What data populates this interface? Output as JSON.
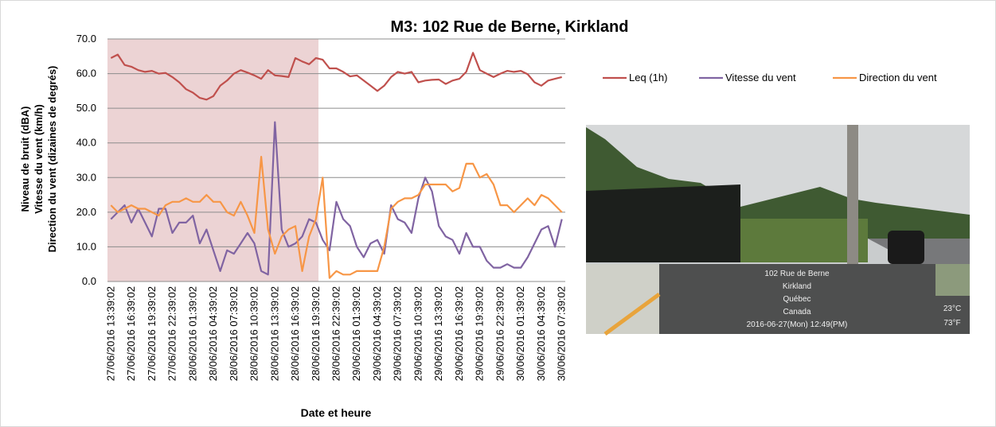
{
  "chart_data": {
    "type": "line",
    "title": "M3: 102 Rue de Berne, Kirkland",
    "y_title_lines": [
      "Niveau de bruit (dBA)",
      "Vitesse du vent (km/h)",
      "Direction du vent (dizaines de degrés)"
    ],
    "x_title": "Date et heure",
    "categories": [
      "27/06/2016 13:39:02",
      null,
      null,
      "27/06/2016 16:39:02",
      null,
      null,
      "27/06/2016 19:39:02",
      null,
      null,
      "27/06/2016 22:39:02",
      null,
      null,
      "28/06/2016 01:39:02",
      null,
      null,
      "28/06/2016 04:39:02",
      null,
      null,
      "28/06/2016 07:39:02",
      null,
      null,
      "28/06/2016 10:39:02",
      null,
      null,
      "28/06/2016 13:39:02",
      null,
      null,
      "28/06/2016 16:39:02",
      null,
      null,
      "28/06/2016 19:39:02",
      null,
      null,
      "28/06/2016 22:39:02",
      null,
      null,
      "29/06/2016 01:39:02",
      null,
      null,
      "29/06/2016 04:39:02",
      null,
      null,
      "29/06/2016 07:39:02",
      null,
      null,
      "29/06/2016 10:39:02",
      null,
      null,
      "29/06/2016 13:39:02",
      null,
      null,
      "29/06/2016 16:39:02",
      null,
      null,
      "29/06/2016 19:39:02",
      null,
      null,
      "29/06/2016 22:39:02",
      null,
      null,
      "30/06/2016 01:39:02",
      null,
      null,
      "30/06/2016 04:39:02",
      null,
      null,
      "30/06/2016 07:39:02"
    ],
    "series": [
      {
        "name": "Leq (1h)",
        "color": "#c0504d",
        "values": [
          64.5,
          65.5,
          62.5,
          62,
          61,
          60.5,
          60.8,
          60,
          60.2,
          59,
          57.5,
          55.5,
          54.5,
          53,
          52.5,
          53.5,
          56.5,
          58,
          60,
          61,
          60.3,
          59.5,
          58.5,
          61,
          59.5,
          59.3,
          59,
          64.5,
          63.5,
          62.7,
          64.5,
          64,
          61.5,
          61.5,
          60.5,
          59.2,
          59.5,
          58,
          56.5,
          55,
          56.5,
          59,
          60.5,
          60,
          60.5,
          57.5,
          58,
          58.2,
          58.3,
          57,
          58,
          58.5,
          60.5,
          66,
          61,
          60,
          59,
          60,
          60.8,
          60.5,
          60.8,
          59.8,
          57.5,
          56.5,
          58,
          58.5,
          59
        ]
      },
      {
        "name": "Vitesse du vent",
        "color": "#8064a2",
        "values": [
          18,
          20,
          22,
          17,
          21,
          17,
          13,
          21,
          21,
          14,
          17,
          17,
          19,
          11,
          15,
          9,
          3,
          9,
          8,
          11,
          14,
          11,
          3,
          2,
          46,
          15,
          10,
          11,
          13,
          18,
          17,
          12,
          9,
          23,
          18,
          16,
          10,
          7,
          11,
          12,
          8,
          22,
          18,
          17,
          14,
          24,
          30,
          26,
          16,
          13,
          12,
          8,
          14,
          10,
          10,
          6,
          4,
          4,
          5,
          4,
          4,
          7,
          11,
          15,
          16,
          10,
          18
        ]
      },
      {
        "name": "Direction du vent",
        "color": "#f79646",
        "values": [
          22,
          20,
          21,
          22,
          21,
          21,
          20,
          19,
          22,
          23,
          23,
          24,
          23,
          23,
          25,
          23,
          23,
          20,
          19,
          23,
          19,
          14,
          36,
          15,
          8,
          13,
          15,
          16,
          3,
          13,
          18,
          30,
          1,
          3,
          2,
          2,
          3,
          3,
          3,
          3,
          10,
          21,
          23,
          24,
          24,
          25,
          28,
          28,
          28,
          28,
          26,
          27,
          34,
          34,
          30,
          31,
          28,
          22,
          22,
          20,
          22,
          24,
          22,
          25,
          24,
          22,
          20
        ]
      }
    ],
    "ylim": [
      0,
      70
    ],
    "yticks": [
      {
        "value": 0,
        "label": "0.0"
      },
      {
        "value": 10,
        "label": "10.0"
      },
      {
        "value": 20,
        "label": "20.0"
      },
      {
        "value": 30,
        "label": "30.0"
      },
      {
        "value": 40,
        "label": "40.0"
      },
      {
        "value": 50,
        "label": "50.0"
      },
      {
        "value": 60,
        "label": "60.0"
      },
      {
        "value": 70,
        "label": "70.0"
      }
    ],
    "grid": true
  },
  "photo": {
    "lines": [
      "102 Rue de Berne",
      "Kirkland",
      "Québec",
      "Canada",
      "2016-06-27(Mon)   12:49(PM)"
    ],
    "temp_c": "23°C",
    "temp_f": "73°F"
  }
}
